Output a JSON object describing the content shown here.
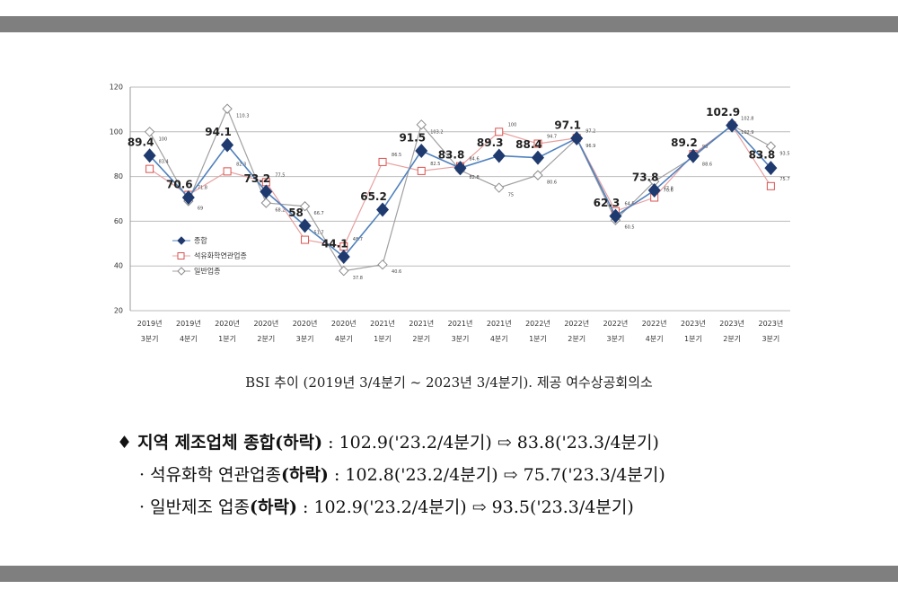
{
  "chart_data": {
    "type": "line",
    "categories": [
      "2019년 3분기",
      "2019년 4분기",
      "2020년 1분기",
      "2020년 2분기",
      "2020년 3분기",
      "2020년 4분기",
      "2021년 1분기",
      "2021년 2분기",
      "2021년 3분기",
      "2021년 4분기",
      "2022년 1분기",
      "2022년 2분기",
      "2022년 3분기",
      "2022년 4분기",
      "2023년 1분기",
      "2023년 2분기",
      "2023년 3분기"
    ],
    "series": [
      {
        "name": "종합",
        "color": "#1f3a6e",
        "values": [
          89.4,
          70.6,
          94.1,
          73.2,
          58,
          44.1,
          65.2,
          91.5,
          83.8,
          89.3,
          88.4,
          97.1,
          62.3,
          73.8,
          89.2,
          102.9,
          83.8
        ]
      },
      {
        "name": "석유화학연관업종",
        "color": "#d9534f",
        "values": [
          83.4,
          71.8,
          82.3,
          77.5,
          51.7,
          48.7,
          86.5,
          82.5,
          84.6,
          100,
          94.7,
          97.2,
          64.5,
          70.6,
          90,
          102.8,
          75.7
        ]
      },
      {
        "name": "일반업종",
        "color": "#8c8c8c",
        "values": [
          100,
          69,
          110.3,
          68.2,
          66.7,
          37.8,
          40.6,
          103.2,
          82.8,
          75,
          80.6,
          96.9,
          60.5,
          77.8,
          88.6,
          102.9,
          93.5
        ]
      }
    ],
    "ylim": [
      20,
      120
    ],
    "yticks": [
      20,
      40,
      60,
      80,
      100,
      120
    ],
    "grid": true
  },
  "caption": "BSI 추이 (2019년 3/4분기 ~ 2023년 3/4분기). 제공 여수상공회의소",
  "bullets": [
    {
      "marker": "♦",
      "label": "지역 제조업체 종합(하락)",
      "detail": ": 102.9('23.2/4분기) ⇨ 83.8('23.3/4분기)"
    },
    {
      "marker": "·",
      "label": "석유화학 연관업종",
      "status": "(하락)",
      "detail": ": 102.8('23.2/4분기) ⇨ 75.7('23.3/4분기)"
    },
    {
      "marker": "·",
      "label": "일반제조 업종",
      "status": "(하락)",
      "detail": ": 102.9('23.2/4분기) ⇨ 93.5('23.3/4분기)"
    }
  ]
}
